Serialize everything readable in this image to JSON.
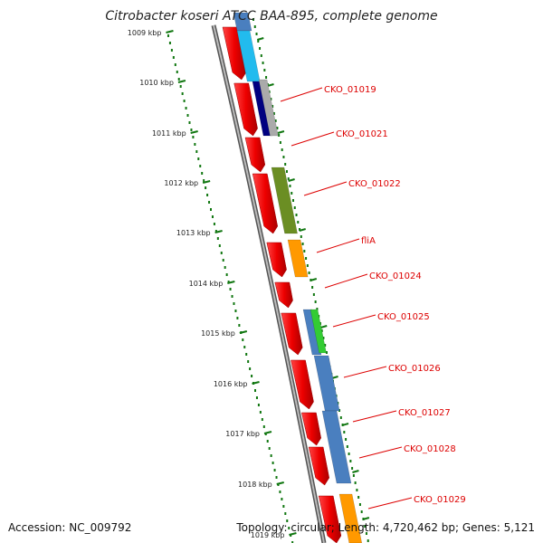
{
  "title": "Citrobacter koseri ATCC BAA-895, complete genome",
  "accession": "Accession: NC_009792",
  "summary": "Topology: circular; Length: 4,720,462 bp; Genes: 5,121",
  "kbp_ticks": [
    "1009 kbp",
    "1010 kbp",
    "1011 kbp",
    "1012 kbp",
    "1013 kbp",
    "1014 kbp",
    "1015 kbp",
    "1016 kbp",
    "1017 kbp",
    "1018 kbp",
    "1019 kbp"
  ],
  "gene_labels": [
    "CKO_01019",
    "CKO_01021",
    "CKO_01022",
    "fliA",
    "CKO_01024",
    "CKO_01025",
    "CKO_01026",
    "CKO_01027",
    "CKO_01028",
    "CKO_01029"
  ],
  "colors": {
    "cds": "#ff0000",
    "backbone": "#888888",
    "ticks": "#117711",
    "label": "#dd0000",
    "cog_blue": "#4a7fbf",
    "cog_sky": "#22bbee",
    "cog_navy": "#000080",
    "cog_gray": "#aaaaaa",
    "cog_olive": "#6b8e23",
    "cog_orange": "#ff9900",
    "cog_green": "#33cc33"
  }
}
